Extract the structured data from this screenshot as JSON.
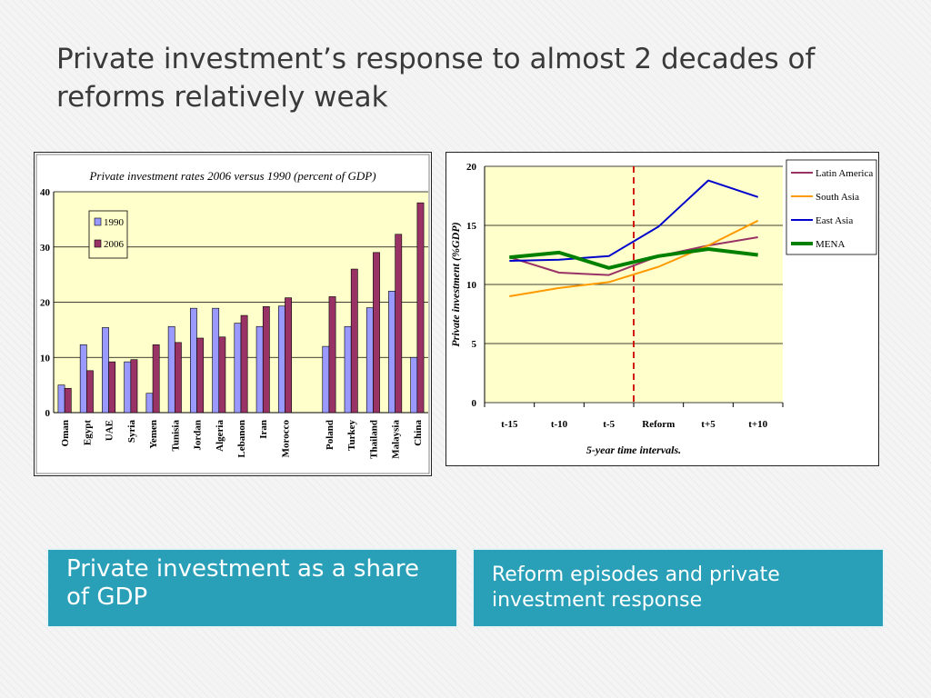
{
  "slide": {
    "title": "Private investment’s response to almost 2 decades of reforms relatively weak",
    "caption_left": "Private investment as a share of GDP",
    "caption_right": "Reform episodes and private investment response"
  },
  "colors": {
    "plot_bg": "#ffffcc",
    "bar_1990": "#9999ff",
    "bar_2006": "#993366",
    "caption_bg": "#2aa0b8",
    "reform_line": "#cc0000"
  },
  "chart_data": [
    {
      "type": "bar",
      "title": "Private investment rates 2006  versus 1990 (percent of GDP)",
      "xlabel": "",
      "ylabel": "",
      "ylim": [
        0,
        40
      ],
      "yticks": [
        "0",
        "10",
        "20",
        "30",
        "40"
      ],
      "grid": true,
      "legend_position": "top-left",
      "categories": [
        "Oman",
        "Egypt",
        "UAE",
        "Syria",
        "Yemen",
        "Tunisia",
        "Jordan",
        "Algeria",
        "Lebanon",
        "Iran",
        "Morocco",
        "",
        "Poland",
        "Turkey",
        "Thailand",
        "Malaysia",
        "China"
      ],
      "series": [
        {
          "name": "1990",
          "color": "#9999ff",
          "values": [
            5,
            12.3,
            15.4,
            9.2,
            3.5,
            15.6,
            18.9,
            18.9,
            16.2,
            15.6,
            19.3,
            null,
            12,
            15.6,
            19,
            22,
            10
          ]
        },
        {
          "name": "2006",
          "color": "#993366",
          "values": [
            4.4,
            7.6,
            9.2,
            9.6,
            12.3,
            12.7,
            13.5,
            13.7,
            17.6,
            19.2,
            20.8,
            null,
            21,
            26,
            29,
            32.3,
            38
          ]
        }
      ]
    },
    {
      "type": "line",
      "title": "",
      "xlabel": "5-year time intervals.",
      "ylabel": "Private investment (%GDP)",
      "ylim": [
        0,
        20
      ],
      "yticks": [
        "0",
        "5",
        "10",
        "15",
        "20"
      ],
      "grid": true,
      "legend_position": "top-right",
      "categories": [
        "t-15",
        "t-10",
        "t-5",
        "Reform",
        "t+5",
        "t+10"
      ],
      "reform_marker": "between t-5 and Reform",
      "series": [
        {
          "name": "Latin America",
          "color": "#993366",
          "width": 2,
          "values": [
            12.3,
            11,
            10.8,
            12.4,
            13.3,
            14
          ]
        },
        {
          "name": "South Asia",
          "color": "#ff9900",
          "width": 2,
          "values": [
            9,
            9.7,
            10.2,
            11.5,
            13.3,
            15.4
          ]
        },
        {
          "name": "East Asia",
          "color": "#0000cc",
          "width": 2,
          "values": [
            12,
            12.1,
            12.4,
            14.9,
            18.8,
            17.4
          ]
        },
        {
          "name": "MENA",
          "color": "#008000",
          "width": 4,
          "values": [
            12.3,
            12.7,
            11.4,
            12.4,
            13,
            12.5
          ]
        }
      ]
    }
  ]
}
